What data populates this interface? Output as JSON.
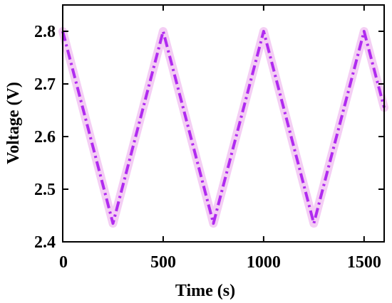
{
  "chart_data": {
    "type": "line",
    "title": "",
    "xlabel": "Time (s)",
    "ylabel": "Voltage (V)",
    "xlim": [
      0,
      1600
    ],
    "ylim": [
      2.4,
      2.85
    ],
    "xticks": [
      0,
      500,
      1000,
      1500
    ],
    "xtick_labels": [
      "0",
      "500",
      "1000",
      "1500"
    ],
    "yticks": [
      2.4,
      2.5,
      2.6,
      2.7,
      2.8
    ],
    "ytick_labels": [
      "2.4",
      "2.5",
      "2.6",
      "2.7",
      "2.8"
    ],
    "grid": false,
    "legend": "none",
    "series": [
      {
        "line_style": "dash-dot",
        "color": "#b02bf0",
        "halo_color": "#f2c6f2",
        "x": [
          0,
          250,
          500,
          750,
          1000,
          1250,
          1500,
          1600
        ],
        "y": [
          2.8,
          2.435,
          2.8,
          2.435,
          2.8,
          2.435,
          2.8,
          2.655
        ]
      }
    ]
  }
}
